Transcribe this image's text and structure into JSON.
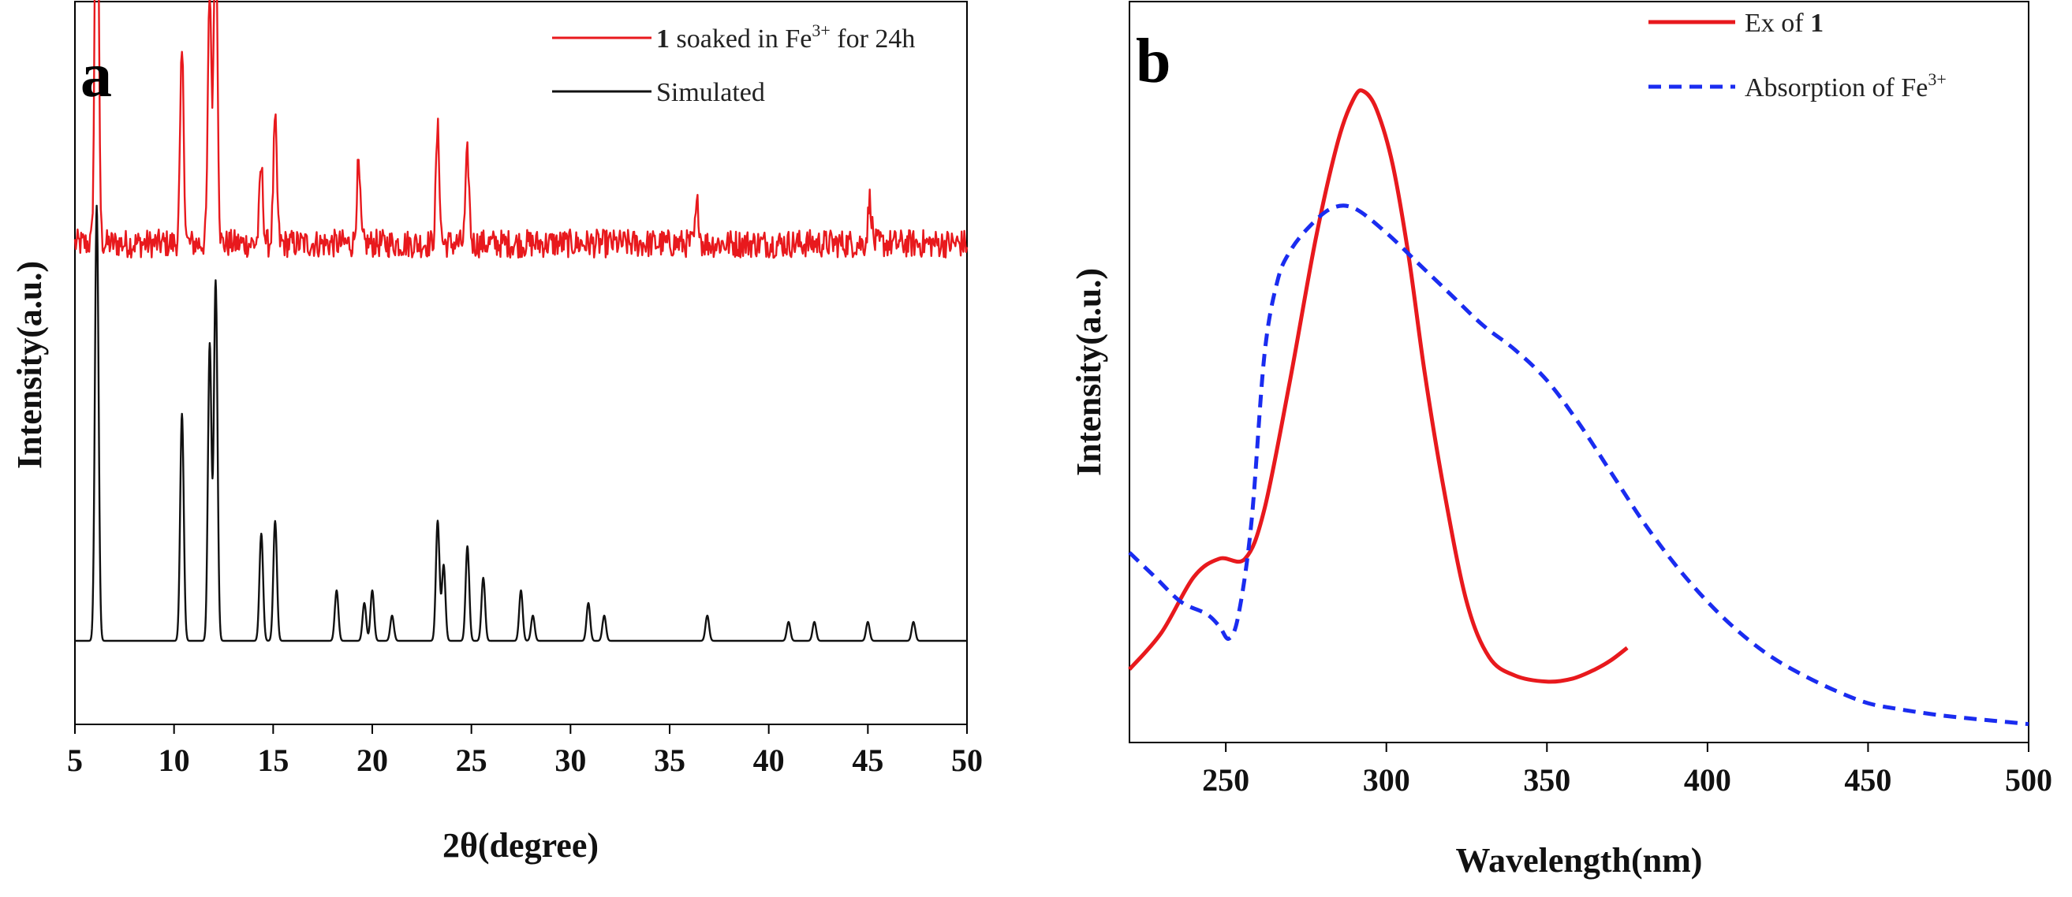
{
  "colors": {
    "red": "#e8191d",
    "black": "#111111",
    "blue": "#1a2cf0"
  },
  "chart_data": [
    {
      "panel_label": "a",
      "type": "line",
      "xlabel": "2θ(degree)",
      "ylabel": "Intensity(a.u.)",
      "xlim": [
        5,
        50
      ],
      "xticks": [
        5,
        10,
        15,
        20,
        25,
        30,
        35,
        40,
        45,
        50
      ],
      "yticks_shown": false,
      "series": [
        {
          "name_bold": "1",
          "name_rest": " soaked in Fe",
          "name_sup": "3+",
          "name_tail": " for 24h",
          "color": "red",
          "style": "solid",
          "baseline": 0.63,
          "noise": 0.045,
          "peaks": [
            [
              6.1,
              0.78
            ],
            [
              10.4,
              0.3
            ],
            [
              11.8,
              0.4
            ],
            [
              12.1,
              0.54
            ],
            [
              14.4,
              0.12
            ],
            [
              15.1,
              0.19
            ],
            [
              19.3,
              0.12
            ],
            [
              23.3,
              0.18
            ],
            [
              24.8,
              0.14
            ],
            [
              36.4,
              0.06
            ],
            [
              45.1,
              0.07
            ]
          ]
        },
        {
          "name": "Simulated",
          "color": "black",
          "style": "solid",
          "baseline": 0.0,
          "peaks": [
            [
              6.1,
              0.69
            ],
            [
              10.4,
              0.36
            ],
            [
              11.8,
              0.47
            ],
            [
              12.1,
              0.57
            ],
            [
              14.4,
              0.17
            ],
            [
              15.1,
              0.19
            ],
            [
              18.2,
              0.08
            ],
            [
              19.6,
              0.06
            ],
            [
              20.0,
              0.08
            ],
            [
              21.0,
              0.04
            ],
            [
              23.3,
              0.19
            ],
            [
              23.6,
              0.12
            ],
            [
              24.8,
              0.15
            ],
            [
              25.6,
              0.1
            ],
            [
              27.5,
              0.08
            ],
            [
              28.1,
              0.04
            ],
            [
              30.9,
              0.06
            ],
            [
              31.7,
              0.04
            ],
            [
              36.9,
              0.04
            ],
            [
              41.0,
              0.03
            ],
            [
              42.3,
              0.03
            ],
            [
              45.0,
              0.03
            ],
            [
              47.3,
              0.03
            ]
          ]
        }
      ]
    },
    {
      "panel_label": "b",
      "type": "line",
      "xlabel": "Wavelength(nm)",
      "ylabel": "Intensity(a.u.)",
      "xlim": [
        220,
        500
      ],
      "ylim": [
        0,
        1
      ],
      "xticks": [
        250,
        300,
        350,
        400,
        450,
        500
      ],
      "yticks_shown": false,
      "series": [
        {
          "name": "Ex of ",
          "name_bold": "1",
          "color": "red",
          "style": "solid",
          "x": [
            220,
            230,
            240,
            248,
            256,
            262,
            270,
            278,
            285,
            290,
            293,
            297,
            302,
            307,
            312,
            318,
            325,
            332,
            340,
            350,
            358,
            365,
            370,
            375
          ],
          "y": [
            0.11,
            0.17,
            0.26,
            0.29,
            0.29,
            0.37,
            0.58,
            0.81,
            0.97,
            1.04,
            1.05,
            1.02,
            0.93,
            0.78,
            0.59,
            0.4,
            0.22,
            0.13,
            0.1,
            0.09,
            0.095,
            0.11,
            0.125,
            0.145
          ]
        },
        {
          "name": "Absorption of Fe",
          "name_sup": "3+",
          "color": "blue",
          "style": "dashed",
          "x": [
            220,
            228,
            236,
            244,
            248,
            251,
            254,
            258,
            262,
            266,
            270,
            276,
            283,
            290,
            300,
            310,
            320,
            330,
            340,
            350,
            360,
            370,
            380,
            390,
            400,
            410,
            420,
            430,
            440,
            450,
            460,
            470,
            480,
            490,
            500
          ],
          "y": [
            0.3,
            0.26,
            0.22,
            0.2,
            0.18,
            0.16,
            0.2,
            0.35,
            0.62,
            0.74,
            0.79,
            0.83,
            0.86,
            0.86,
            0.82,
            0.77,
            0.72,
            0.67,
            0.63,
            0.58,
            0.51,
            0.43,
            0.35,
            0.28,
            0.22,
            0.17,
            0.13,
            0.1,
            0.075,
            0.055,
            0.045,
            0.037,
            0.031,
            0.026,
            0.021
          ]
        }
      ]
    }
  ]
}
